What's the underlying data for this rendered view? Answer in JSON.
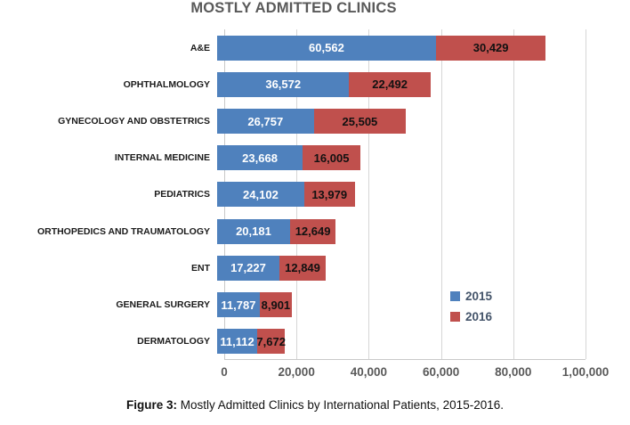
{
  "title": "MOSTLY ADMITTED CLINICS",
  "caption": {
    "prefix": "Figure 3:",
    "text": " Mostly Admitted Clinics by International Patients, 2015-2016."
  },
  "colors": {
    "series_2015": "#4f81bd",
    "series_2016": "#c0504d",
    "gridline": "#d6d6d6",
    "title_text": "#595959",
    "axis_text": "#595959"
  },
  "legend": {
    "position": "inside-right-bottom",
    "items": [
      {
        "label": "2015",
        "color": "#4f81bd"
      },
      {
        "label": "2016",
        "color": "#c0504d"
      }
    ]
  },
  "chart_data": {
    "type": "bar",
    "orientation": "horizontal",
    "stacked": true,
    "title": "MOSTLY ADMITTED CLINICS",
    "xlabel": "",
    "ylabel": "",
    "xlim": [
      0,
      100000
    ],
    "grid": true,
    "categories": [
      "A&E",
      "OPHTHALMOLOGY",
      "GYNECOLOGY AND OBSTETRICS",
      "INTERNAL MEDICINE",
      "PEDIATRICS",
      "ORTHOPEDICS AND TRAUMATOLOGY",
      "ENT",
      "GENERAL SURGERY",
      "DERMATOLOGY"
    ],
    "series": [
      {
        "name": "2015",
        "values": [
          60562,
          36572,
          26757,
          23668,
          24102,
          20181,
          17227,
          11787,
          11112
        ],
        "labels": [
          "60,562",
          "36,572",
          "26,757",
          "23,668",
          "24,102",
          "20,181",
          "17,227",
          "11,787",
          "11,112"
        ]
      },
      {
        "name": "2016",
        "values": [
          30429,
          22492,
          25505,
          16005,
          13979,
          12649,
          12849,
          8901,
          7672
        ],
        "labels": [
          "30,429",
          "22,492",
          "25,505",
          "16,005",
          "13,979",
          "12,649",
          "12,849",
          "8,901",
          "7,672"
        ]
      }
    ],
    "xticks": {
      "values": [
        0,
        20000,
        40000,
        60000,
        80000,
        100000
      ],
      "labels": [
        "0",
        "20,000",
        "40,000",
        "60,000",
        "80,000",
        "1,00,000"
      ]
    }
  }
}
